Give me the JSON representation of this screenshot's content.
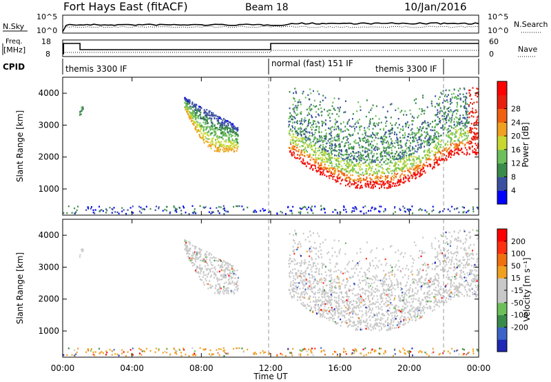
{
  "header": {
    "title": "Fort Hays East (fitACF)",
    "beam": "Beam 18",
    "date": "10/Jan/2016"
  },
  "noise_panel": {
    "left_label": "N.Sky",
    "left_ticks": [
      "10^5",
      "10^0"
    ],
    "right_ticks": [
      "10^5",
      "10^0"
    ],
    "right_label": "N.Search"
  },
  "freq_panel": {
    "left_label_line1": "Freq.",
    "left_label_line2": "[MHz]",
    "left_ticks": [
      "18",
      "8"
    ],
    "right_ticks": [
      "60",
      "0"
    ],
    "right_label": "Nave"
  },
  "cpid": {
    "label": "CPID",
    "segments": [
      "themis 3300 IF",
      "normal (fast) 151 IF",
      "themis 3300 IF"
    ]
  },
  "x_axis": {
    "label": "Time UT",
    "ticks": [
      "00:00",
      "04:00",
      "08:00",
      "12:00",
      "16:00",
      "20:00",
      "00:00"
    ]
  },
  "colors": {
    "power_scale": [
      "#0000ff",
      "#3c50a0",
      "#3a8a4a",
      "#6cbf5a",
      "#c8d832",
      "#f0a020",
      "#f06010",
      "#e82010",
      "#ff0000"
    ],
    "velocity_scale": [
      "#1e28b4",
      "#3c64c8",
      "#3a8a4a",
      "#6cbf5a",
      "#c8c8c8",
      "#c8c8c8",
      "#f0a020",
      "#f07010",
      "#ff3010",
      "#ff0000"
    ],
    "ground_scatter": "#c8c8c8"
  },
  "chart_data": [
    {
      "type": "heatmap",
      "name": "power",
      "ylabel": "Slant Range [km]",
      "xlabel": "",
      "xlim_hours": [
        0,
        24
      ],
      "ylim": [
        180,
        4500
      ],
      "y_ticks": [
        "1000",
        "2000",
        "3000",
        "4000"
      ],
      "colorbar_label": "Power [dB]",
      "colorbar_ticks": [
        "4",
        "8",
        "12",
        "16",
        "20",
        "24",
        "28"
      ],
      "scatter_regions": [
        {
          "t_start": 0.95,
          "t_end": 1.15,
          "r_min": 3300,
          "r_max": 3550
        },
        {
          "t_start": 7.0,
          "t_end": 10.1,
          "r_min": 2050,
          "r_max": 3850
        },
        {
          "t_start": 13.0,
          "t_end": 23.9,
          "r_min": 1000,
          "r_max": 4150
        }
      ]
    },
    {
      "type": "heatmap",
      "name": "velocity",
      "ylabel": "Slant Range [km]",
      "xlabel": "Time UT",
      "xlim_hours": [
        0,
        24
      ],
      "ylim": [
        180,
        4500
      ],
      "y_ticks": [
        "1000",
        "2000",
        "3000",
        "4000"
      ],
      "colorbar_label": "Velocity [m s⁻¹]",
      "colorbar_ticks": [
        "200",
        "100",
        "50",
        "15",
        "-15",
        "-50",
        "-100",
        "-200"
      ]
    }
  ]
}
